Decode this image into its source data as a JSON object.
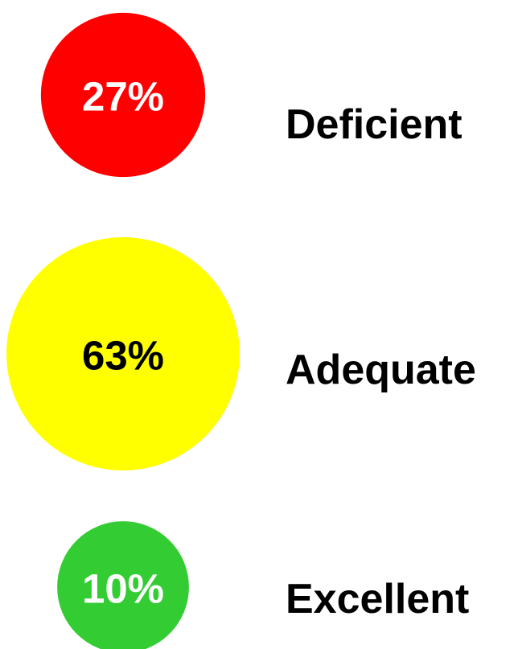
{
  "chart_data": {
    "type": "bubble",
    "categories": [
      "Deficient",
      "Adequate",
      "Excellent"
    ],
    "values": [
      27,
      63,
      10
    ],
    "value_labels": [
      "27%",
      "63%",
      "10%"
    ],
    "colors": [
      "#ff0000",
      "#ffff00",
      "#33cc33"
    ],
    "label_colors": [
      "#ffffff",
      "#000000",
      "#ffffff"
    ]
  }
}
